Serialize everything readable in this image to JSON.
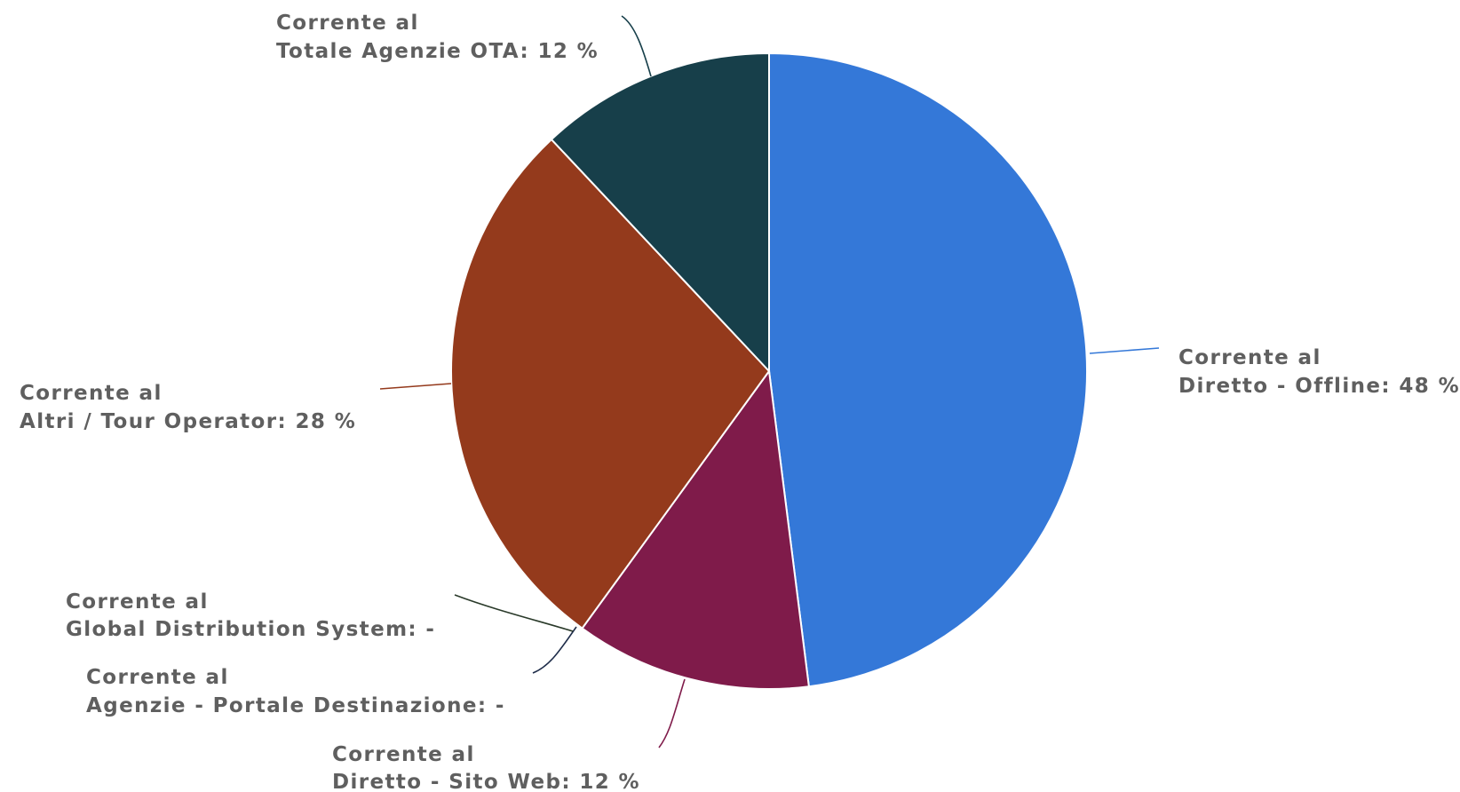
{
  "chart_data": {
    "type": "pie",
    "slices": [
      {
        "name": "Diretto - Offline",
        "label_line1": "Corrente al",
        "label_line2": "Diretto - Offline: 48 %",
        "value": 48,
        "color": "#3478d8"
      },
      {
        "name": "Diretto - Sito Web",
        "label_line1": "Corrente al",
        "label_line2": "Diretto - Sito Web: 12 %",
        "value": 12,
        "color": "#7f1b4a"
      },
      {
        "name": "Agenzie - Portale Destinazione",
        "label_line1": "Corrente al",
        "label_line2": "Agenzie - Portale Destinazione: -",
        "value": 0,
        "color": "#1f2d4a"
      },
      {
        "name": "Global Distribution System",
        "label_line1": "Corrente al",
        "label_line2": "Global Distribution System: -",
        "value": 0,
        "color": "#2a3a2a"
      },
      {
        "name": "Altri / Tour Operator",
        "label_line1": "Corrente al",
        "label_line2": "Altri / Tour Operator: 28 %",
        "value": 28,
        "color": "#943a1c"
      },
      {
        "name": "Totale Agenzie OTA",
        "label_line1": "Corrente al",
        "label_line2": "Totale Agenzie OTA: 12 %",
        "value": 12,
        "color": "#173f4a"
      }
    ]
  }
}
